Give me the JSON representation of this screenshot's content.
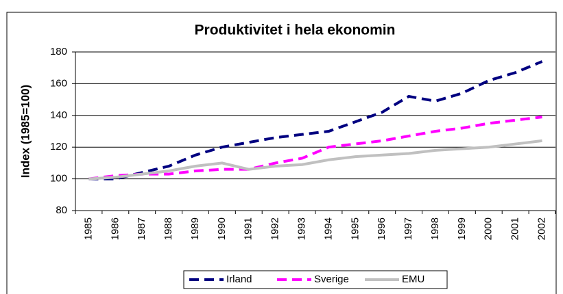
{
  "chart_data": {
    "type": "line",
    "title": "Produktivitet i hela ekonomin",
    "ylabel": "Index (1985=100)",
    "categories": [
      "1985",
      "1986",
      "1987",
      "1988",
      "1989",
      "1990",
      "1991",
      "1992",
      "1993",
      "1994",
      "1995",
      "1996",
      "1997",
      "1998",
      "1999",
      "2000",
      "2001",
      "2002"
    ],
    "series": [
      {
        "name": "Irland",
        "color": "#000080",
        "style": "dashed",
        "values": [
          100,
          100,
          104,
          108,
          115,
          120,
          123,
          126,
          128,
          130,
          136,
          142,
          152,
          149,
          154,
          162,
          167,
          174
        ]
      },
      {
        "name": "Sverige",
        "color": "#ff00ff",
        "style": "dashed",
        "values": [
          100,
          102,
          103,
          103,
          105,
          106,
          106,
          110,
          113,
          120,
          122,
          124,
          127,
          130,
          132,
          135,
          137,
          139
        ]
      },
      {
        "name": "EMU",
        "color": "#c0c0c0",
        "style": "solid",
        "values": [
          100,
          101,
          103,
          105,
          108,
          110,
          106,
          108,
          109,
          112,
          114,
          115,
          116,
          118,
          119,
          120,
          122,
          124
        ]
      }
    ],
    "ylim": [
      80,
      180
    ],
    "yticks": [
      80,
      100,
      120,
      140,
      160,
      180
    ],
    "grid": true,
    "legend": "bottom"
  }
}
